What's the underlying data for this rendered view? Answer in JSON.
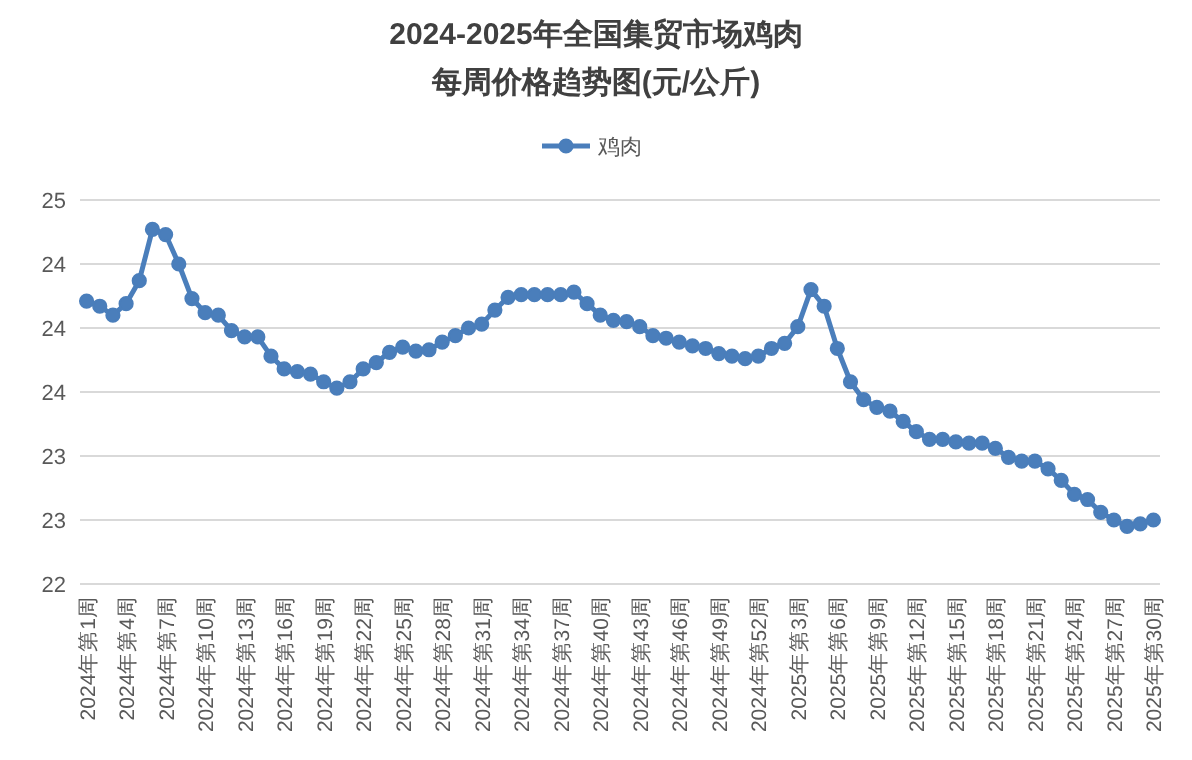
{
  "chart_data": {
    "type": "line",
    "title": "2024-2025年全国集贸市场鸡肉",
    "subtitle": "每周价格趋势图(元/公斤)",
    "categories": [
      "2024年第1周",
      null,
      null,
      "2024年第4周",
      null,
      null,
      "2024年第7周",
      null,
      null,
      "2024年第10周",
      null,
      null,
      "2024年第13周",
      null,
      null,
      "2024年第16周",
      null,
      null,
      "2024年第19周",
      null,
      null,
      "2024年第22周",
      null,
      null,
      "2024年第25周",
      null,
      null,
      "2024年第28周",
      null,
      null,
      "2024年第31周",
      null,
      null,
      "2024年第34周",
      null,
      null,
      "2024年第37周",
      null,
      null,
      "2024年第40周",
      null,
      null,
      "2024年第43周",
      null,
      null,
      "2024年第46周",
      null,
      null,
      "2024年第49周",
      null,
      null,
      "2024年第52周",
      null,
      null,
      "2025年第3周",
      null,
      null,
      "2025年第6周",
      null,
      null,
      "2025年第9周",
      null,
      null,
      "2025年第12周",
      null,
      null,
      "2025年第15周",
      null,
      null,
      "2025年第18周",
      null,
      null,
      "2025年第21周",
      null,
      null,
      "2025年第24周",
      null,
      null,
      "2025年第27周",
      null,
      null,
      "2025年第30周"
    ],
    "series": [
      {
        "name": "鸡肉",
        "color": "#4a7ebb",
        "values": [
          24.21,
          24.17,
          24.1,
          24.19,
          24.37,
          24.77,
          24.73,
          24.5,
          24.23,
          24.12,
          24.1,
          23.98,
          23.93,
          23.93,
          23.78,
          23.68,
          23.66,
          23.64,
          23.58,
          23.53,
          23.58,
          23.68,
          23.73,
          23.81,
          23.85,
          23.82,
          23.83,
          23.89,
          23.94,
          24.0,
          24.03,
          24.14,
          24.24,
          24.26,
          24.26,
          24.26,
          24.26,
          24.28,
          24.19,
          24.1,
          24.06,
          24.05,
          24.01,
          23.94,
          23.92,
          23.89,
          23.86,
          23.84,
          23.8,
          23.78,
          23.76,
          23.78,
          23.84,
          23.88,
          24.01,
          24.3,
          24.17,
          23.84,
          23.58,
          23.44,
          23.38,
          23.35,
          23.27,
          23.19,
          23.13,
          23.13,
          23.11,
          23.1,
          23.1,
          23.06,
          22.99,
          22.96,
          22.96,
          22.9,
          22.81,
          22.7,
          22.66,
          22.56,
          22.5,
          22.45,
          22.47,
          22.5
        ]
      }
    ],
    "ylim": [
      22,
      25
    ],
    "yticks": [
      22,
      {
        "value": 22.5,
        "label": "23"
      },
      23,
      {
        "value": 23.5,
        "label": "24"
      },
      24,
      {
        "value": 24.5,
        "label": "24"
      },
      25
    ],
    "grid": "y",
    "legend": "top",
    "marker": "circle"
  }
}
